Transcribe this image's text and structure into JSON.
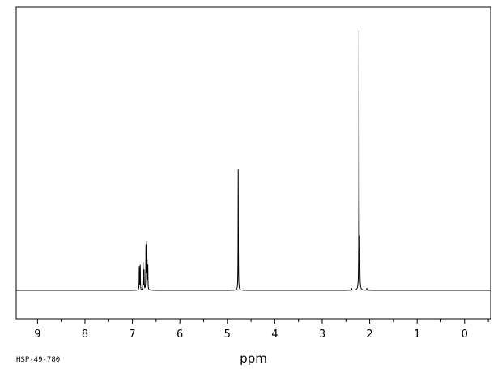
{
  "chart_data": {
    "type": "line",
    "title": "",
    "xlabel": "ppm",
    "ylabel": "",
    "xlim": [
      9.45,
      -0.55
    ],
    "ylim": [
      -0.1,
      1.0
    ],
    "x_reversed": true,
    "grid": false,
    "legend": "none",
    "line_color": "#000000",
    "tick_labels": [
      "9",
      "8",
      "7",
      "6",
      "5",
      "4",
      "3",
      "2",
      "1",
      "0"
    ],
    "tick_values": [
      9,
      8,
      7,
      6,
      5,
      4,
      3,
      2,
      1,
      0
    ],
    "peaks": [
      {
        "ppm": 6.855,
        "height": 0.09
      },
      {
        "ppm": 6.835,
        "height": 0.095
      },
      {
        "ppm": 6.775,
        "height": 0.105
      },
      {
        "ppm": 6.755,
        "height": 0.075
      },
      {
        "ppm": 6.715,
        "height": 0.165
      },
      {
        "ppm": 6.7,
        "height": 0.17
      },
      {
        "ppm": 6.69,
        "height": 0.095
      },
      {
        "ppm": 6.675,
        "height": 0.09
      },
      {
        "ppm": 4.77,
        "height": 0.47
      },
      {
        "ppm": 2.225,
        "height": 1.0
      },
      {
        "ppm": 2.21,
        "height": 0.16
      },
      {
        "ppm": 2.38,
        "height": 0.008
      },
      {
        "ppm": 2.06,
        "height": 0.008
      }
    ]
  },
  "footer_code": "HSP-49-780"
}
